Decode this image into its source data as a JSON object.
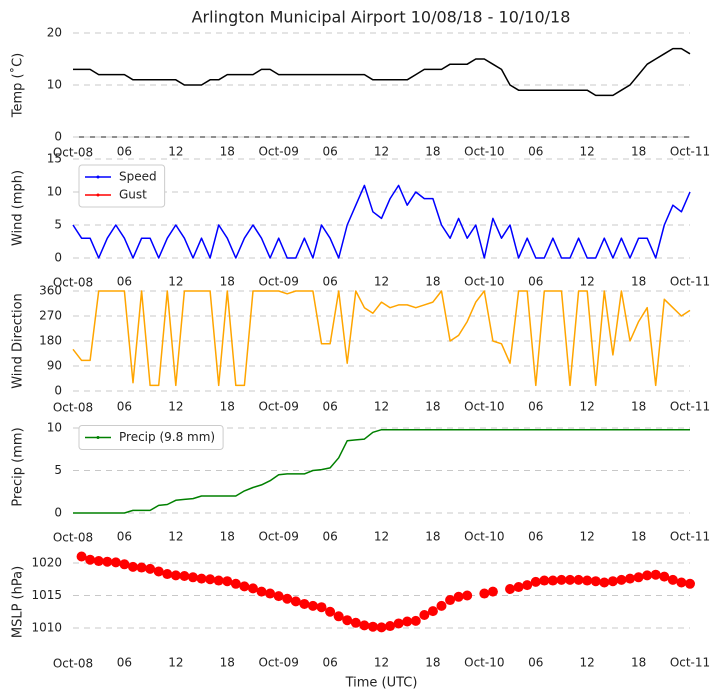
{
  "chart_data": [
    {
      "type": "line",
      "title": "Arlington Municipal Airport 10/08/18 - 10/10/18",
      "ylabel": "Temp ($^\\circ$C)",
      "x": [
        0,
        1,
        2,
        3,
        4,
        5,
        6,
        7,
        8,
        9,
        10,
        11,
        12,
        13,
        14,
        15,
        16,
        17,
        18,
        19,
        20,
        21,
        22,
        23,
        24,
        25,
        26,
        27,
        28,
        29,
        30,
        31,
        32,
        33,
        34,
        35,
        36,
        37,
        38,
        39,
        40,
        41,
        42,
        43,
        44,
        45,
        46,
        47,
        48,
        49,
        50,
        51,
        52,
        53,
        54,
        55,
        56,
        57,
        58,
        59,
        60,
        61,
        62,
        63,
        64,
        65,
        66,
        67,
        68,
        69,
        70,
        71,
        72
      ],
      "xlim": [
        0,
        72
      ],
      "xticks": [
        {
          "value": 0,
          "label": "Oct-08"
        },
        {
          "value": 6,
          "label": "06"
        },
        {
          "value": 12,
          "label": "12"
        },
        {
          "value": 18,
          "label": "18"
        },
        {
          "value": 24,
          "label": "Oct-09"
        },
        {
          "value": 30,
          "label": "06"
        },
        {
          "value": 36,
          "label": "12"
        },
        {
          "value": 42,
          "label": "18"
        },
        {
          "value": 48,
          "label": "Oct-10"
        },
        {
          "value": 54,
          "label": "06"
        },
        {
          "value": 60,
          "label": "12"
        },
        {
          "value": 66,
          "label": "18"
        },
        {
          "value": 72,
          "label": "Oct-11"
        }
      ],
      "ylim": [
        0,
        20
      ],
      "yticks": [
        0,
        10,
        20
      ],
      "grid": true,
      "series": [
        {
          "color": "#000000",
          "values": [
            13,
            13,
            13,
            12,
            12,
            12,
            12,
            11,
            11,
            11,
            11,
            11,
            11,
            10,
            10,
            10,
            11,
            11,
            12,
            12,
            12,
            12,
            13,
            13,
            12,
            12,
            12,
            12,
            12,
            12,
            12,
            12,
            12,
            12,
            12,
            11,
            11,
            11,
            11,
            11,
            12,
            13,
            13,
            13,
            14,
            14,
            14,
            15,
            15,
            14,
            13,
            10,
            9,
            9,
            9,
            9,
            9,
            9,
            9,
            9,
            9,
            8,
            8,
            8,
            9,
            10,
            12,
            14,
            15,
            16,
            17,
            17,
            16
          ]
        }
      ]
    },
    {
      "type": "line",
      "ylabel": "Wind (mph)",
      "legend": "upper left",
      "x": [
        0,
        1,
        2,
        3,
        4,
        5,
        6,
        7,
        8,
        9,
        10,
        11,
        12,
        13,
        14,
        15,
        16,
        17,
        18,
        19,
        20,
        21,
        22,
        23,
        24,
        25,
        26,
        27,
        28,
        29,
        30,
        31,
        32,
        33,
        34,
        35,
        36,
        37,
        38,
        39,
        40,
        41,
        42,
        43,
        44,
        45,
        46,
        47,
        48,
        49,
        50,
        51,
        52,
        53,
        54,
        55,
        56,
        57,
        58,
        59,
        60,
        61,
        62,
        63,
        64,
        65,
        66,
        67,
        68,
        69,
        70,
        71,
        72
      ],
      "xlim": [
        0,
        72
      ],
      "xticks": [
        {
          "value": 0,
          "label": "Oct-08"
        },
        {
          "value": 6,
          "label": "06"
        },
        {
          "value": 12,
          "label": "12"
        },
        {
          "value": 18,
          "label": "18"
        },
        {
          "value": 24,
          "label": "Oct-09"
        },
        {
          "value": 30,
          "label": "06"
        },
        {
          "value": 36,
          "label": "12"
        },
        {
          "value": 42,
          "label": "18"
        },
        {
          "value": 48,
          "label": "Oct-10"
        },
        {
          "value": 54,
          "label": "06"
        },
        {
          "value": 60,
          "label": "12"
        },
        {
          "value": 66,
          "label": "18"
        },
        {
          "value": 72,
          "label": "Oct-11"
        }
      ],
      "ylim": [
        0,
        15
      ],
      "yticks": [
        0,
        5,
        10,
        15
      ],
      "grid": true,
      "series": [
        {
          "name": "Speed",
          "color": "#0000ff",
          "values": [
            5,
            3,
            3,
            0,
            3,
            5,
            3,
            0,
            3,
            3,
            0,
            3,
            5,
            3,
            0,
            3,
            0,
            5,
            3,
            0,
            3,
            5,
            3,
            0,
            3,
            0,
            0,
            3,
            0,
            5,
            3,
            0,
            5,
            8,
            11,
            7,
            6,
            9,
            11,
            8,
            10,
            9,
            9,
            5,
            3,
            6,
            3,
            5,
            0,
            6,
            3,
            5,
            0,
            3,
            0,
            0,
            3,
            0,
            0,
            3,
            0,
            0,
            3,
            0,
            3,
            0,
            3,
            3,
            0,
            5,
            8,
            7,
            10
          ]
        },
        {
          "name": "Gust",
          "color": "#ff0000",
          "values": [
            null,
            null,
            null,
            null,
            null,
            null,
            null,
            null,
            null,
            null,
            null,
            null,
            null,
            null,
            null,
            null,
            null,
            null,
            null,
            null,
            null,
            null,
            null,
            null,
            null,
            null,
            null,
            null,
            null,
            null,
            null,
            null,
            null,
            null,
            null,
            null,
            null,
            null,
            null,
            null,
            null,
            null,
            null,
            null,
            null,
            null,
            null,
            null,
            null,
            null,
            null,
            null,
            null,
            null,
            null,
            null,
            null,
            null,
            null,
            null,
            null,
            null,
            null,
            null,
            null,
            null,
            null,
            null,
            null,
            null,
            null,
            null,
            null
          ]
        }
      ]
    },
    {
      "type": "line",
      "ylabel": "Wind Direction",
      "x": [
        0,
        1,
        2,
        3,
        4,
        5,
        6,
        7,
        8,
        9,
        10,
        11,
        12,
        13,
        14,
        15,
        16,
        17,
        18,
        19,
        20,
        21,
        22,
        23,
        24,
        25,
        26,
        27,
        28,
        29,
        30,
        31,
        32,
        33,
        34,
        35,
        36,
        37,
        38,
        39,
        40,
        41,
        42,
        43,
        44,
        45,
        46,
        47,
        48,
        49,
        50,
        51,
        52,
        53,
        54,
        55,
        56,
        57,
        58,
        59,
        60,
        61,
        62,
        63,
        64,
        65,
        66,
        67,
        68,
        69,
        70,
        71,
        72
      ],
      "xlim": [
        0,
        72
      ],
      "xticks": [
        {
          "value": 0,
          "label": "Oct-08"
        },
        {
          "value": 6,
          "label": "06"
        },
        {
          "value": 12,
          "label": "12"
        },
        {
          "value": 18,
          "label": "18"
        },
        {
          "value": 24,
          "label": "Oct-09"
        },
        {
          "value": 30,
          "label": "06"
        },
        {
          "value": 36,
          "label": "12"
        },
        {
          "value": 42,
          "label": "18"
        },
        {
          "value": 48,
          "label": "Oct-10"
        },
        {
          "value": 54,
          "label": "06"
        },
        {
          "value": 60,
          "label": "12"
        },
        {
          "value": 66,
          "label": "18"
        },
        {
          "value": 72,
          "label": "Oct-11"
        }
      ],
      "ylim": [
        0,
        360
      ],
      "yticks": [
        0,
        90,
        180,
        270,
        360
      ],
      "grid": true,
      "series": [
        {
          "color": "#ffa500",
          "values": [
            150,
            110,
            110,
            360,
            360,
            360,
            360,
            30,
            360,
            20,
            20,
            360,
            20,
            360,
            360,
            360,
            360,
            20,
            360,
            20,
            20,
            360,
            360,
            360,
            360,
            350,
            360,
            360,
            360,
            170,
            170,
            360,
            100,
            360,
            300,
            280,
            320,
            300,
            310,
            310,
            300,
            310,
            320,
            360,
            180,
            200,
            250,
            320,
            360,
            180,
            170,
            100,
            360,
            360,
            20,
            360,
            360,
            360,
            20,
            360,
            360,
            20,
            360,
            130,
            360,
            180,
            250,
            300,
            20,
            330,
            300,
            270,
            290
          ]
        }
      ]
    },
    {
      "type": "line",
      "ylabel": "Precip (mm)",
      "legend": "upper left",
      "x": [
        0,
        1,
        2,
        3,
        4,
        5,
        6,
        7,
        8,
        9,
        10,
        11,
        12,
        13,
        14,
        15,
        16,
        17,
        18,
        19,
        20,
        21,
        22,
        23,
        24,
        25,
        26,
        27,
        28,
        29,
        30,
        31,
        32,
        33,
        34,
        35,
        36,
        37,
        38,
        39,
        40,
        41,
        42,
        43,
        44,
        45,
        46,
        47,
        48,
        49,
        50,
        51,
        52,
        53,
        54,
        55,
        56,
        57,
        58,
        59,
        60,
        61,
        62,
        63,
        64,
        65,
        66,
        67,
        68,
        69,
        70,
        71,
        72
      ],
      "xlim": [
        0,
        72
      ],
      "xticks": [
        {
          "value": 0,
          "label": "Oct-08"
        },
        {
          "value": 6,
          "label": "06"
        },
        {
          "value": 12,
          "label": "12"
        },
        {
          "value": 18,
          "label": "18"
        },
        {
          "value": 24,
          "label": "Oct-09"
        },
        {
          "value": 30,
          "label": "06"
        },
        {
          "value": 36,
          "label": "12"
        },
        {
          "value": 42,
          "label": "18"
        },
        {
          "value": 48,
          "label": "Oct-10"
        },
        {
          "value": 54,
          "label": "06"
        },
        {
          "value": 60,
          "label": "12"
        },
        {
          "value": 66,
          "label": "18"
        },
        {
          "value": 72,
          "label": "Oct-11"
        }
      ],
      "ylim": [
        0,
        11
      ],
      "yticks": [
        0,
        5,
        10
      ],
      "grid": true,
      "series": [
        {
          "name": "Precip (9.8 mm)",
          "color": "#008000",
          "values": [
            0,
            0,
            0,
            0,
            0,
            0,
            0,
            0.3,
            0.3,
            0.3,
            0.9,
            1.0,
            1.5,
            1.6,
            1.7,
            2.0,
            2.0,
            2.0,
            2.0,
            2.0,
            2.6,
            3.0,
            3.3,
            3.8,
            4.5,
            4.6,
            4.6,
            4.6,
            5.0,
            5.1,
            5.3,
            6.5,
            8.5,
            8.6,
            8.7,
            9.5,
            9.8,
            9.8,
            9.8,
            9.8,
            9.8,
            9.8,
            9.8,
            9.8,
            9.8,
            9.8,
            9.8,
            9.8,
            9.8,
            9.8,
            9.8,
            9.8,
            9.8,
            9.8,
            9.8,
            9.8,
            9.8,
            9.8,
            9.8,
            9.8,
            9.8,
            9.8,
            9.8,
            9.8,
            9.8,
            9.8,
            9.8,
            9.8,
            9.8,
            9.8,
            9.8,
            9.8,
            9.8
          ]
        }
      ]
    },
    {
      "type": "scatter",
      "ylabel": "MSLP (hPa)",
      "xlabel": "Time (UTC)",
      "x": [
        1,
        2,
        3,
        4,
        5,
        6,
        7,
        8,
        9,
        10,
        11,
        12,
        13,
        14,
        15,
        16,
        17,
        18,
        19,
        20,
        21,
        22,
        23,
        24,
        25,
        26,
        27,
        28,
        29,
        30,
        31,
        32,
        33,
        34,
        35,
        36,
        37,
        38,
        39,
        40,
        41,
        42,
        43,
        44,
        45,
        46,
        47,
        48,
        49,
        50,
        51,
        52,
        53,
        54,
        55,
        56,
        57,
        58,
        59,
        60,
        61,
        62,
        63,
        64,
        65,
        66,
        67,
        68,
        69,
        70,
        71,
        72
      ],
      "xlim": [
        0,
        72
      ],
      "xticks": [
        {
          "value": 0,
          "label": "Oct-08"
        },
        {
          "value": 6,
          "label": "06"
        },
        {
          "value": 12,
          "label": "12"
        },
        {
          "value": 18,
          "label": "18"
        },
        {
          "value": 24,
          "label": "Oct-09"
        },
        {
          "value": 30,
          "label": "06"
        },
        {
          "value": 36,
          "label": "12"
        },
        {
          "value": 42,
          "label": "18"
        },
        {
          "value": 48,
          "label": "Oct-10"
        },
        {
          "value": 54,
          "label": "06"
        },
        {
          "value": 60,
          "label": "12"
        },
        {
          "value": 66,
          "label": "18"
        },
        {
          "value": 72,
          "label": "Oct-11"
        }
      ],
      "ylim": [
        1006,
        1022
      ],
      "yticks": [
        1010,
        1015,
        1020
      ],
      "grid": true,
      "series": [
        {
          "color": "#ff0000",
          "values": [
            1021.0,
            1020.5,
            1020.3,
            1020.2,
            1020.1,
            1019.8,
            1019.4,
            1019.3,
            1019.1,
            1018.7,
            1018.3,
            1018.1,
            1018.0,
            1017.8,
            1017.6,
            1017.5,
            1017.3,
            1017.2,
            1016.8,
            1016.4,
            1016.1,
            1015.6,
            1015.3,
            1014.9,
            1014.5,
            1014.1,
            1013.7,
            1013.4,
            1013.2,
            1012.5,
            1011.8,
            1011.2,
            1010.8,
            1010.4,
            1010.2,
            1010.1,
            1010.3,
            1010.7,
            1011.0,
            1011.1,
            1012.0,
            1012.6,
            1013.4,
            1014.3,
            1014.8,
            1015.0,
            null,
            1015.3,
            1015.6,
            null,
            1016.0,
            1016.3,
            1016.6,
            1017.1,
            1017.3,
            1017.3,
            1017.4,
            1017.4,
            1017.4,
            1017.3,
            1017.2,
            1017.0,
            1017.2,
            1017.4,
            1017.6,
            1017.8,
            1018.1,
            1018.2,
            1017.9,
            1017.4,
            1017.0,
            1016.8
          ]
        }
      ]
    }
  ]
}
